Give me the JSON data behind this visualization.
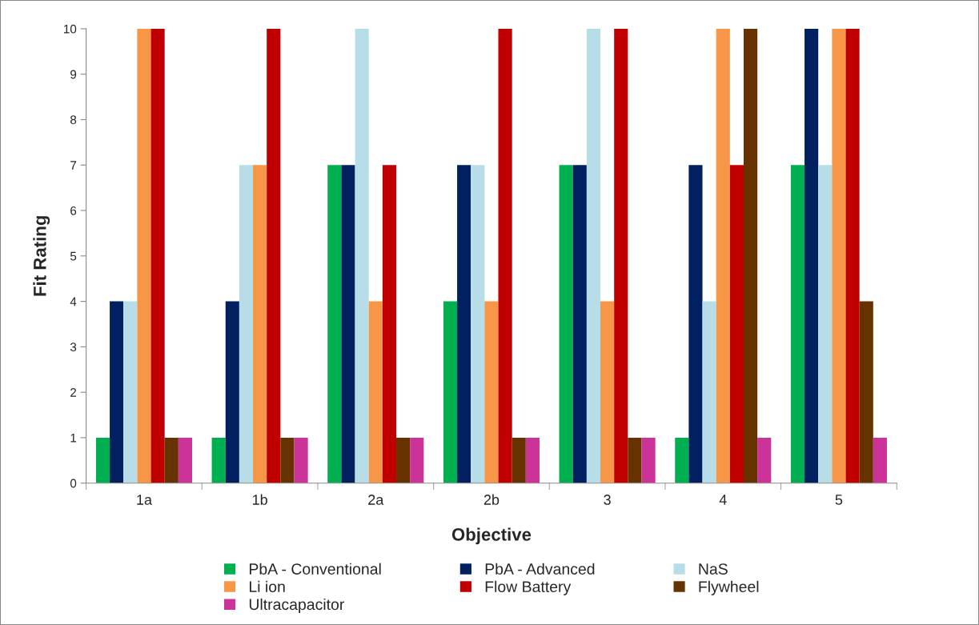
{
  "chart_data": {
    "type": "bar",
    "xlabel": "Objective",
    "ylabel": "Fit Rating",
    "categories": [
      "1a",
      "1b",
      "2a",
      "2b",
      "3",
      "4",
      "5"
    ],
    "series": [
      {
        "name": "PbA - Conventional",
        "color": "#00b050",
        "values": [
          1,
          1,
          7,
          4,
          7,
          1,
          7
        ]
      },
      {
        "name": "PbA - Advanced",
        "color": "#002060",
        "values": [
          4,
          4,
          7,
          7,
          7,
          7,
          10
        ]
      },
      {
        "name": "NaS",
        "color": "#b7dee8",
        "values": [
          4,
          7,
          10,
          7,
          10,
          4,
          7
        ]
      },
      {
        "name": "Li ion",
        "color": "#f79646",
        "values": [
          10,
          7,
          4,
          4,
          4,
          10,
          10
        ]
      },
      {
        "name": "Flow Battery",
        "color": "#c00000",
        "values": [
          10,
          10,
          7,
          10,
          10,
          7,
          10
        ]
      },
      {
        "name": "Flywheel",
        "color": "#663300",
        "values": [
          1,
          1,
          1,
          1,
          1,
          10,
          4
        ]
      },
      {
        "name": "Ultracapacitor",
        "color": "#cc3399",
        "values": [
          1,
          1,
          1,
          1,
          1,
          1,
          1
        ]
      }
    ],
    "ylim": [
      0,
      10
    ],
    "yticks": [
      0,
      1,
      2,
      3,
      4,
      5,
      6,
      7,
      8,
      9,
      10
    ],
    "grid": false,
    "legend": "bottom"
  }
}
